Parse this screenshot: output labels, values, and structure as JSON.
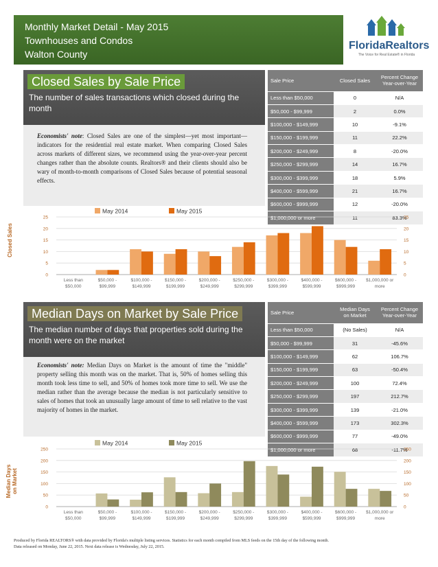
{
  "header": {
    "lines": [
      "Monthly Market Detail - May 2015",
      "Townhouses and Condos",
      "Walton County"
    ],
    "logo_text": "FloridaRealtors",
    "logo_tag": "The Voice for Real Estate® in Florida"
  },
  "closed_sales": {
    "title": "Closed Sales by Sale Price",
    "subtitle": "The number of sales transactions which closed during the month",
    "notes_label": "Economists' note",
    "notes_text": ": Closed Sales are one of the simplest—yet most important—indicators for the residential real estate market. When comparing Closed Sales across markets of different sizes, we recommend using the year-over-year percent changes rather than the absolute counts. Realtors® and their clients should also be wary of month-to-month comparisons of Closed Sales because of potential seasonal effects.",
    "table": {
      "headers": [
        "Sale Price",
        "Closed Sales",
        "Percent Change Year-over-Year"
      ],
      "rows": [
        [
          "Less than $50,000",
          "0",
          "N/A"
        ],
        [
          "$50,000 - $99,999",
          "2",
          "0.0%"
        ],
        [
          "$100,000 - $149,999",
          "10",
          "-9.1%"
        ],
        [
          "$150,000 - $199,999",
          "11",
          "22.2%"
        ],
        [
          "$200,000 - $249,999",
          "8",
          "-20.0%"
        ],
        [
          "$250,000 - $299,999",
          "14",
          "16.7%"
        ],
        [
          "$300,000 - $399,999",
          "18",
          "5.9%"
        ],
        [
          "$400,000 - $599,999",
          "21",
          "16.7%"
        ],
        [
          "$600,000 - $999,999",
          "12",
          "-20.0%"
        ],
        [
          "$1,000,000 or more",
          "11",
          "83.3%"
        ]
      ]
    },
    "side_label": "Closed Sales"
  },
  "median_days": {
    "title": "Median Days on Market by Sale Price",
    "subtitle": "The median number of days that properties sold during the month were on the market",
    "notes_label": "Economists' note:",
    "notes_text": " Median Days on Market is the amount of time the \"middle\" property selling this month was on the market. That is, 50% of homes selling this month took less time to sell, and 50% of homes took more time to sell. We use the median rather than the average because the median is not particularly sensitive to sales of homes that took an unusually large amount of time to sell relative to the vast majority of homes in the market.",
    "table": {
      "headers": [
        "Sale Price",
        "Median Days on Market",
        "Percent Change Year-over-Year"
      ],
      "rows": [
        [
          "Less than $50,000",
          "(No Sales)",
          "N/A"
        ],
        [
          "$50,000 - $99,999",
          "31",
          "-45.6%"
        ],
        [
          "$100,000 - $149,999",
          "62",
          "106.7%"
        ],
        [
          "$150,000 - $199,999",
          "63",
          "-50.4%"
        ],
        [
          "$200,000 - $249,999",
          "100",
          "72.4%"
        ],
        [
          "$250,000 - $299,999",
          "197",
          "212.7%"
        ],
        [
          "$300,000 - $399,999",
          "139",
          "-21.0%"
        ],
        [
          "$400,000 - $599,999",
          "173",
          "302.3%"
        ],
        [
          "$600,000 - $999,999",
          "77",
          "-49.0%"
        ],
        [
          "$1,000,000 or more",
          "68",
          "-11.7%"
        ]
      ]
    },
    "side_label_1": "Median Days",
    "side_label_2": "on Market"
  },
  "chart_data": [
    {
      "type": "bar",
      "title": "",
      "categories": [
        [
          "Less than",
          "$50,000"
        ],
        [
          "$50,000 -",
          "$99,999"
        ],
        [
          "$100,000 -",
          "$149,999"
        ],
        [
          "$150,000 -",
          "$199,999"
        ],
        [
          "$200,000 -",
          "$249,999"
        ],
        [
          "$250,000 -",
          "$299,999"
        ],
        [
          "$300,000 -",
          "$399,999"
        ],
        [
          "$400,000 -",
          "$599,999"
        ],
        [
          "$600,000 -",
          "$999,999"
        ],
        [
          "$1,000,000 or",
          "more"
        ]
      ],
      "series": [
        {
          "name": "May 2014",
          "values": [
            0,
            2,
            11,
            9,
            10,
            12,
            17,
            18,
            15,
            6
          ],
          "color": "#f0a868"
        },
        {
          "name": "May 2015",
          "values": [
            0,
            2,
            10,
            11,
            8,
            14,
            18,
            21,
            12,
            11
          ],
          "color": "#e06b10"
        }
      ],
      "ylim": [
        0,
        25
      ],
      "yticks": [
        0,
        5,
        10,
        15,
        20,
        25
      ],
      "ylabel": "Closed Sales",
      "grid": true,
      "legend": "top",
      "axis_color": "#b86a28"
    },
    {
      "type": "bar",
      "title": "",
      "categories": [
        [
          "Less than",
          "$50,000"
        ],
        [
          "$50,000 -",
          "$99,999"
        ],
        [
          "$100,000 -",
          "$149,999"
        ],
        [
          "$150,000 -",
          "$199,999"
        ],
        [
          "$200,000 -",
          "$249,999"
        ],
        [
          "$250,000 -",
          "$299,999"
        ],
        [
          "$300,000 -",
          "$399,999"
        ],
        [
          "$400,000 -",
          "$599,999"
        ],
        [
          "$600,000 -",
          "$999,999"
        ],
        [
          "$1,000,000 or",
          "more"
        ]
      ],
      "series": [
        {
          "name": "May 2014",
          "values": [
            0,
            57,
            30,
            127,
            58,
            63,
            176,
            43,
            151,
            77
          ],
          "color": "#c8c19a"
        },
        {
          "name": "May 2015",
          "values": [
            0,
            31,
            62,
            63,
            100,
            197,
            139,
            173,
            77,
            68
          ],
          "color": "#8f8a5c"
        }
      ],
      "ylim": [
        0,
        250
      ],
      "yticks": [
        0,
        50,
        100,
        150,
        200,
        250
      ],
      "ylabel": "Median Days on Market",
      "grid": true,
      "legend": "top",
      "axis_color": "#b86a28"
    }
  ],
  "footer": {
    "line1": "Produced by Florida REALTORS® with data provided by Florida's multiple listing services. Statistics for each month compiled from MLS feeds on the 15th day of the following month.",
    "line2": "Data released on Monday, June 22, 2015. Next data release is Wednesday, July 22, 2015."
  }
}
